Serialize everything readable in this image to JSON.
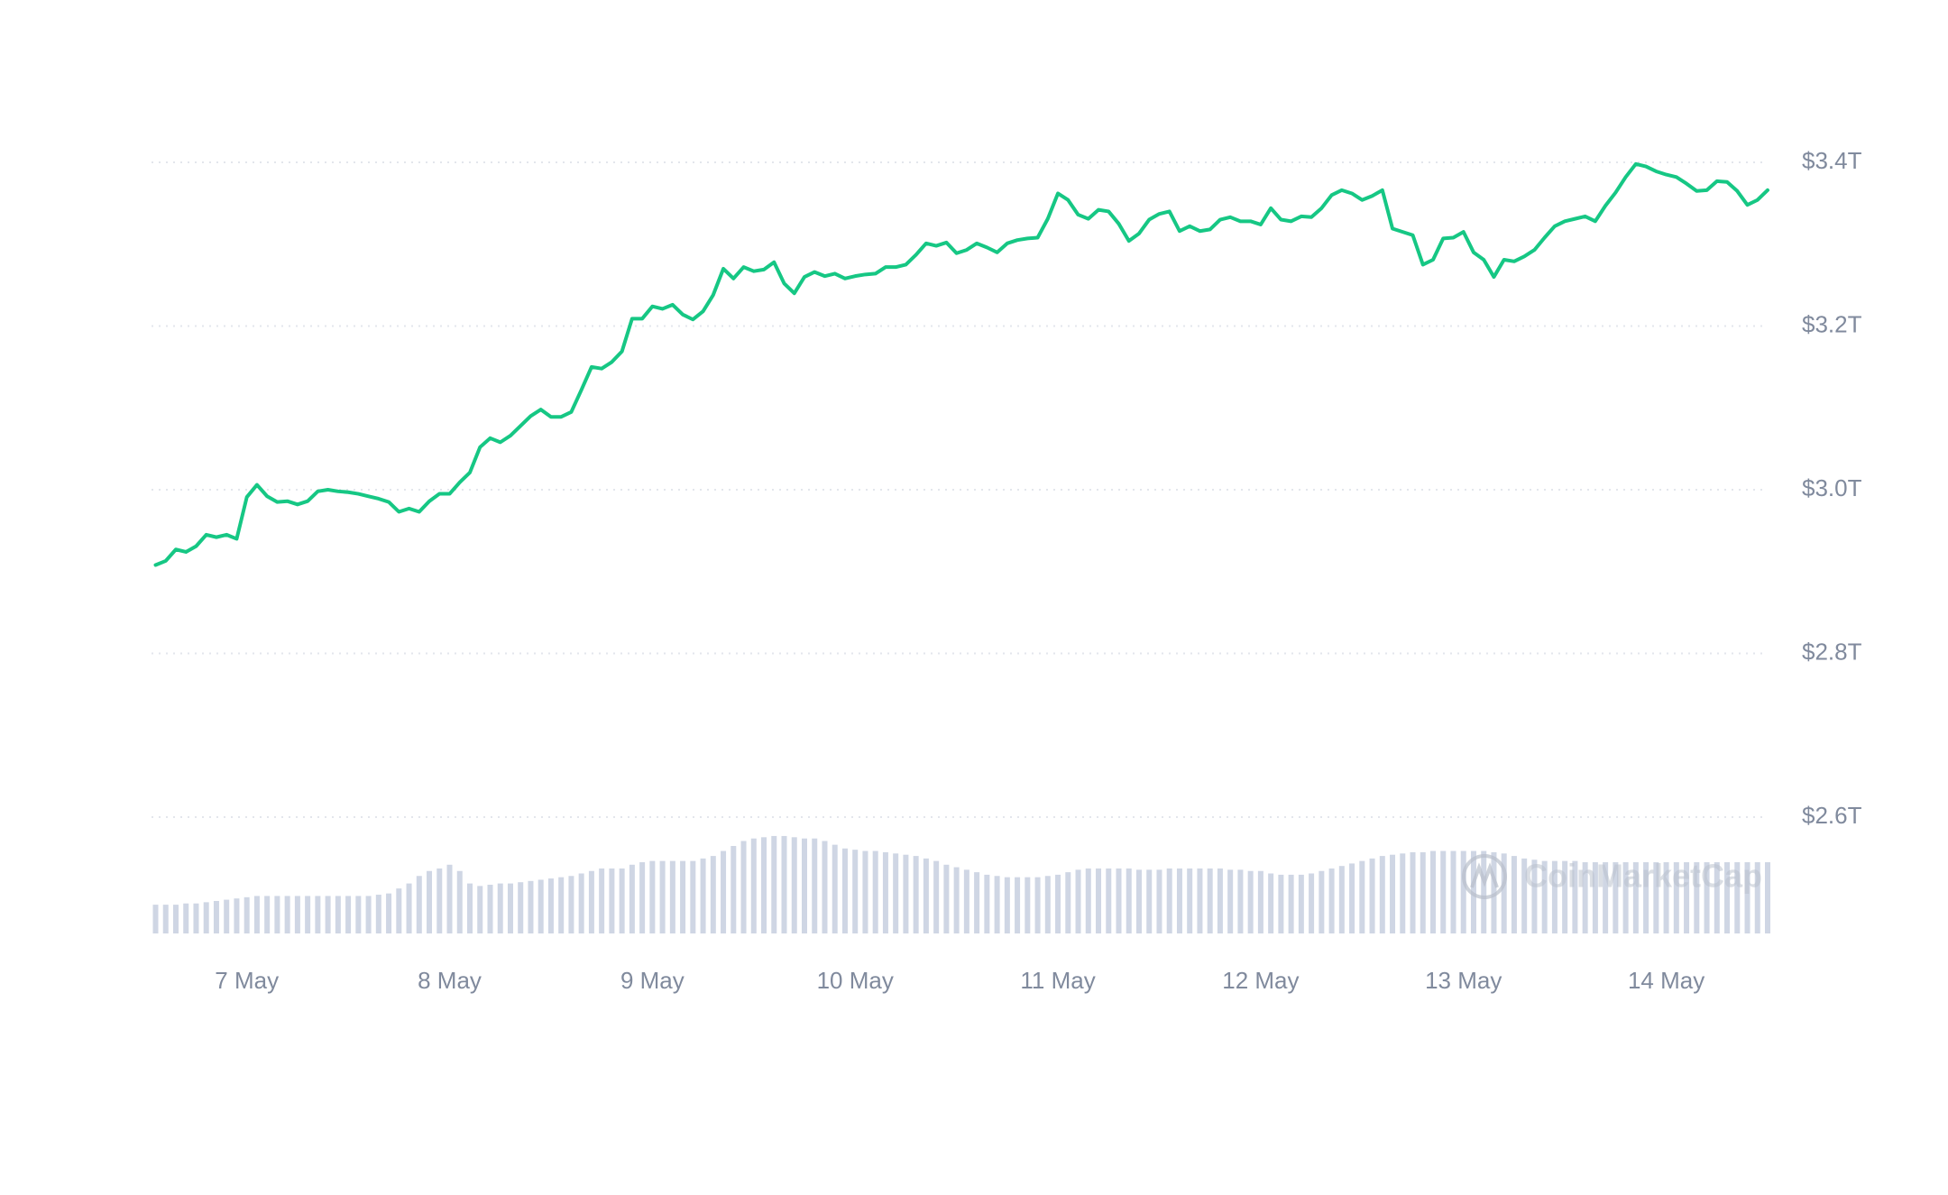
{
  "chart_data": {
    "type": "line",
    "color": "#16c784",
    "volume_color": "#cfd6e4",
    "grid": true,
    "watermark": "CoinMarketCap",
    "xlim": [
      6.53,
      14.5
    ],
    "ylim": [
      2.6,
      3.4
    ],
    "xticks": [
      {
        "value": 7,
        "label": "7 May"
      },
      {
        "value": 8,
        "label": "8 May"
      },
      {
        "value": 9,
        "label": "9 May"
      },
      {
        "value": 10,
        "label": "10 May"
      },
      {
        "value": 11,
        "label": "11 May"
      },
      {
        "value": 12,
        "label": "12 May"
      },
      {
        "value": 13,
        "label": "13 May"
      },
      {
        "value": 14,
        "label": "14 May"
      }
    ],
    "yticks": [
      {
        "value": 2.6,
        "label": "$2.6T"
      },
      {
        "value": 2.8,
        "label": "$2.8T"
      },
      {
        "value": 3.0,
        "label": "$3.0T"
      },
      {
        "value": 3.2,
        "label": "$3.2T"
      },
      {
        "value": 3.4,
        "label": "$3.4T"
      }
    ],
    "x": [
      6.55,
      6.6,
      6.65,
      6.7,
      6.75,
      6.8,
      6.85,
      6.9,
      6.95,
      7.0,
      7.05,
      7.1,
      7.15,
      7.2,
      7.25,
      7.3,
      7.35,
      7.4,
      7.45,
      7.5,
      7.55,
      7.6,
      7.65,
      7.7,
      7.75,
      7.8,
      7.85,
      7.9,
      7.95,
      8.0,
      8.05,
      8.1,
      8.15,
      8.2,
      8.25,
      8.3,
      8.35,
      8.4,
      8.45,
      8.5,
      8.55,
      8.6,
      8.65,
      8.7,
      8.75,
      8.8,
      8.85,
      8.9,
      8.95,
      9.0,
      9.05,
      9.1,
      9.15,
      9.2,
      9.25,
      9.3,
      9.35,
      9.4,
      9.45,
      9.5,
      9.55,
      9.6,
      9.65,
      9.7,
      9.75,
      9.8,
      9.85,
      9.9,
      9.95,
      10.0,
      10.05,
      10.1,
      10.15,
      10.2,
      10.25,
      10.3,
      10.35,
      10.4,
      10.45,
      10.5,
      10.55,
      10.6,
      10.65,
      10.7,
      10.75,
      10.8,
      10.85,
      10.9,
      10.95,
      11.0,
      11.05,
      11.1,
      11.15,
      11.2,
      11.25,
      11.3,
      11.35,
      11.4,
      11.45,
      11.5,
      11.55,
      11.6,
      11.65,
      11.7,
      11.75,
      11.8,
      11.85,
      11.9,
      11.95,
      12.0,
      12.05,
      12.1,
      12.15,
      12.2,
      12.25,
      12.3,
      12.35,
      12.4,
      12.45,
      12.5,
      12.55,
      12.6,
      12.65,
      12.7,
      12.75,
      12.8,
      12.85,
      12.9,
      12.95,
      13.0,
      13.05,
      13.1,
      13.15,
      13.2,
      13.25,
      13.3,
      13.35,
      13.4,
      13.45,
      13.5,
      13.55,
      13.6,
      13.65,
      13.7,
      13.75,
      13.8,
      13.85,
      13.9,
      13.95,
      14.0,
      14.05,
      14.1,
      14.15,
      14.2,
      14.25,
      14.3,
      14.35,
      14.4,
      14.45,
      14.5
    ],
    "values": [
      2.908,
      2.913,
      2.927,
      2.924,
      2.931,
      2.945,
      2.942,
      2.945,
      2.94,
      2.991,
      3.006,
      2.992,
      2.985,
      2.986,
      2.982,
      2.986,
      2.998,
      3.0,
      2.998,
      2.997,
      2.995,
      2.992,
      2.989,
      2.985,
      2.973,
      2.977,
      2.973,
      2.986,
      2.995,
      2.995,
      3.009,
      3.021,
      3.052,
      3.063,
      3.058,
      3.066,
      3.078,
      3.09,
      3.098,
      3.089,
      3.089,
      3.095,
      3.122,
      3.15,
      3.148,
      3.156,
      3.169,
      3.209,
      3.209,
      3.224,
      3.221,
      3.226,
      3.214,
      3.208,
      3.218,
      3.238,
      3.27,
      3.258,
      3.272,
      3.267,
      3.269,
      3.278,
      3.252,
      3.24,
      3.26,
      3.266,
      3.261,
      3.264,
      3.258,
      3.261,
      3.263,
      3.264,
      3.272,
      3.272,
      3.275,
      3.287,
      3.301,
      3.298,
      3.302,
      3.289,
      3.293,
      3.301,
      3.296,
      3.29,
      3.301,
      3.305,
      3.307,
      3.308,
      3.331,
      3.362,
      3.354,
      3.336,
      3.331,
      3.342,
      3.34,
      3.325,
      3.304,
      3.313,
      3.33,
      3.337,
      3.34,
      3.316,
      3.322,
      3.316,
      3.318,
      3.33,
      3.333,
      3.328,
      3.328,
      3.324,
      3.344,
      3.33,
      3.328,
      3.334,
      3.333,
      3.344,
      3.36,
      3.366,
      3.362,
      3.354,
      3.359,
      3.366,
      3.319,
      3.315,
      3.311,
      3.275,
      3.281,
      3.307,
      3.308,
      3.315,
      3.29,
      3.281,
      3.26,
      3.281,
      3.279,
      3.285,
      3.293,
      3.308,
      3.322,
      3.328,
      3.331,
      3.334,
      3.328,
      3.347,
      3.363,
      3.382,
      3.398,
      3.395,
      3.389,
      3.385,
      3.382,
      3.374,
      3.365,
      3.366,
      3.377,
      3.376,
      3.365,
      3.348,
      3.354,
      3.366
    ],
    "volume": [
      23,
      23,
      23,
      24,
      24,
      25,
      26,
      27,
      28,
      29,
      30,
      30,
      30,
      30,
      30,
      30,
      30,
      30,
      30,
      30,
      30,
      30,
      31,
      32,
      36,
      40,
      46,
      50,
      52,
      55,
      50,
      40,
      38,
      39,
      40,
      40,
      41,
      42,
      43,
      44,
      45,
      46,
      48,
      50,
      52,
      52,
      52,
      55,
      57,
      58,
      58,
      58,
      58,
      58,
      60,
      62,
      66,
      70,
      74,
      76,
      77,
      78,
      78,
      77,
      76,
      76,
      74,
      71,
      68,
      67,
      66,
      66,
      65,
      64,
      63,
      62,
      60,
      58,
      55,
      53,
      51,
      49,
      47,
      46,
      45,
      45,
      45,
      45,
      46,
      47,
      49,
      51,
      52,
      52,
      52,
      52,
      52,
      51,
      51,
      51,
      52,
      52,
      52,
      52,
      52,
      52,
      51,
      51,
      50,
      50,
      48,
      47,
      47,
      47,
      48,
      50,
      52,
      54,
      56,
      58,
      60,
      62,
      63,
      64,
      65,
      65,
      66,
      66,
      66,
      66,
      66,
      66,
      65,
      64,
      62,
      60,
      59,
      58,
      58,
      58,
      58,
      57,
      57,
      57,
      57,
      57,
      57,
      57,
      57,
      57,
      57,
      57,
      57,
      57,
      57,
      57,
      57,
      57,
      57,
      57
    ]
  }
}
